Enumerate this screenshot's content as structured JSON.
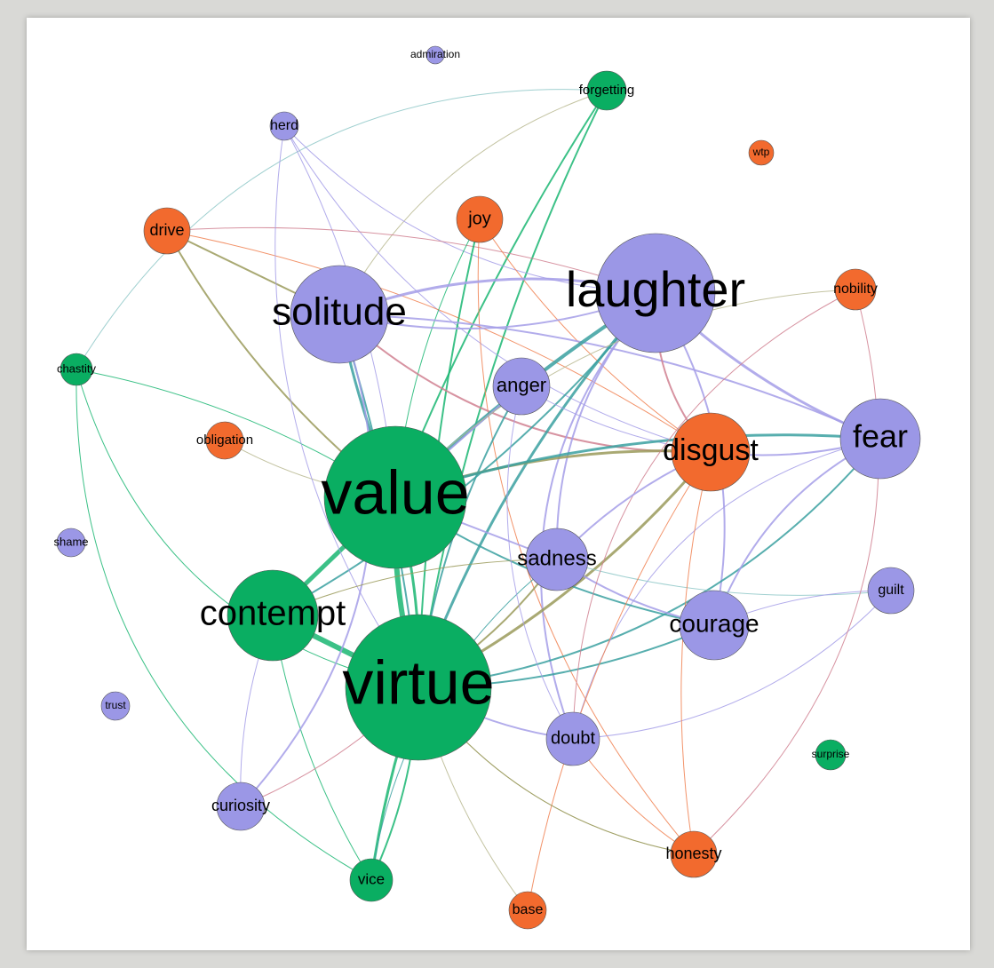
{
  "nodes": [
    {
      "label": "admiration",
      "color": "#9b97e6"
    },
    {
      "label": "forgetting",
      "color": "#0aae62"
    },
    {
      "label": "herd",
      "color": "#9b97e6"
    },
    {
      "label": "wtp",
      "color": "#f26a2e"
    },
    {
      "label": "drive",
      "color": "#f26a2e"
    },
    {
      "label": "joy",
      "color": "#f26a2e"
    },
    {
      "label": "laughter",
      "color": "#9b97e6"
    },
    {
      "label": "nobility",
      "color": "#f26a2e"
    },
    {
      "label": "solitude",
      "color": "#9b97e6"
    },
    {
      "label": "chastity",
      "color": "#0aae62"
    },
    {
      "label": "anger",
      "color": "#9b97e6"
    },
    {
      "label": "obligation",
      "color": "#f26a2e"
    },
    {
      "label": "disgust",
      "color": "#f26a2e"
    },
    {
      "label": "fear",
      "color": "#9b97e6"
    },
    {
      "label": "value",
      "color": "#0aae62"
    },
    {
      "label": "shame",
      "color": "#9b97e6"
    },
    {
      "label": "sadness",
      "color": "#9b97e6"
    },
    {
      "label": "guilt",
      "color": "#9b97e6"
    },
    {
      "label": "contempt",
      "color": "#0aae62"
    },
    {
      "label": "courage",
      "color": "#9b97e6"
    },
    {
      "label": "virtue",
      "color": "#0aae62"
    },
    {
      "label": "trust",
      "color": "#9b97e6"
    },
    {
      "label": "doubt",
      "color": "#9b97e6"
    },
    {
      "label": "surprise",
      "color": "#0aae62"
    },
    {
      "label": "curiosity",
      "color": "#9b97e6"
    },
    {
      "label": "honesty",
      "color": "#f26a2e"
    },
    {
      "label": "vice",
      "color": "#0aae62"
    },
    {
      "label": "base",
      "color": "#f26a2e"
    }
  ]
}
